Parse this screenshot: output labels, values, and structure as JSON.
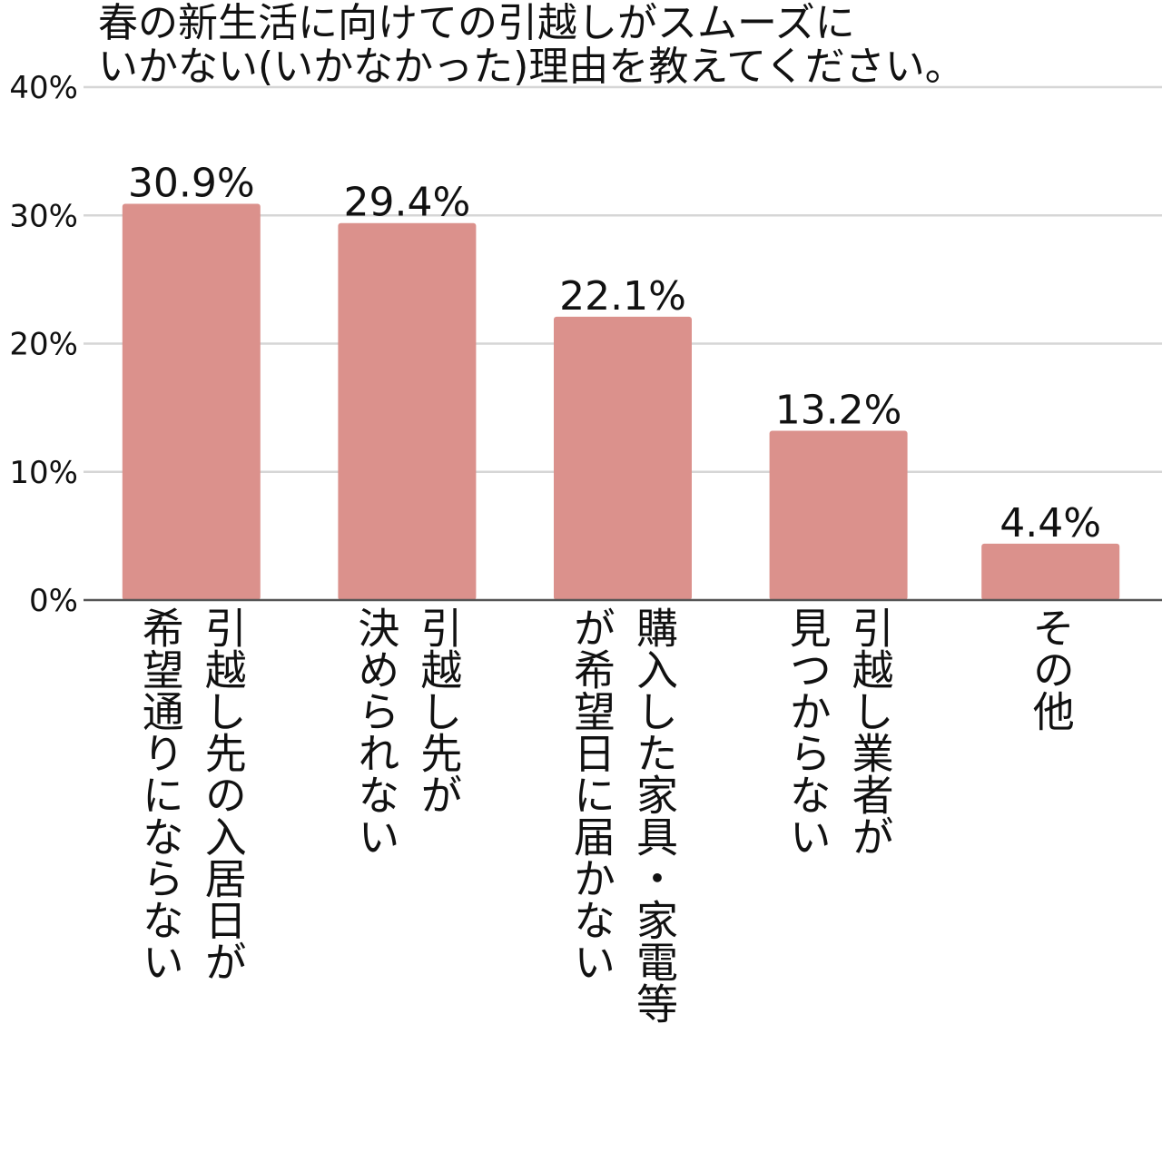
{
  "chart_data": {
    "type": "bar",
    "title": "春の新生活に向けての引越しがスムーズに\nいかない(いかなかった)理由を教えてください。",
    "categories": [
      "引越し先の入居日が\n希望通りにならない",
      "引越し先が\n決められない",
      "購入した家具・家電等\nが希望日に届かない",
      "引越し業者が\n見つからない",
      "その他"
    ],
    "values": [
      30.9,
      29.4,
      22.1,
      13.2,
      4.4
    ],
    "data_labels": [
      "30.9%",
      "29.4%",
      "22.1%",
      "13.2%",
      "4.4%"
    ],
    "y_ticks": [
      0,
      10,
      20,
      30,
      40
    ],
    "y_tick_labels": [
      "0%",
      "10%",
      "20%",
      "30%",
      "40%"
    ],
    "ylim": [
      0,
      40
    ],
    "grid": true,
    "legend": "none",
    "colors": {
      "bar": "#db918c",
      "grid": "#d6d6d6",
      "axis": "#555555",
      "text": "#111111"
    }
  }
}
